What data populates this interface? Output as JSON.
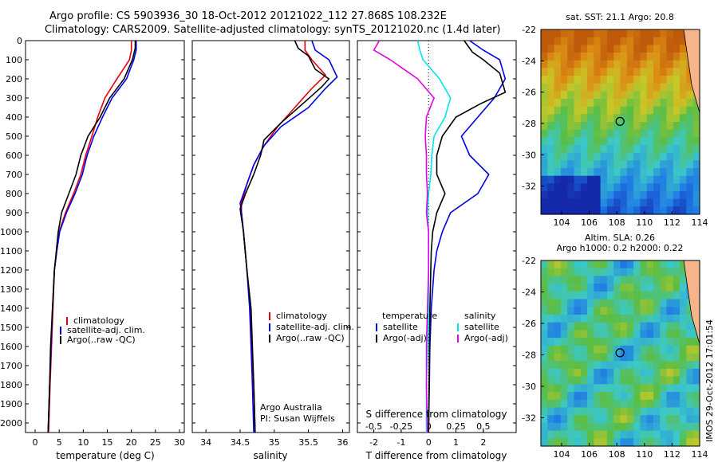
{
  "header": {
    "line1": "Argo profile: CS 5903936_30 18-Oct-2012 20121022_112 27.868S 108.232E",
    "line2": "Climatology: CARS2009. Satellite-adjusted climatology: synTS_20121020.nc (1.4d later)"
  },
  "stamp": "IMOS 29-Oct-2012 17:01:54",
  "colors": {
    "climatology": "#e8000b",
    "satellite": "#0000e6",
    "argo": "#000000",
    "salinity_sat": "#00e5e5",
    "salinity_argo": "#e600e6"
  },
  "chart_data": [
    {
      "type": "line",
      "xlabel": "temperature (deg C)",
      "xlim": [
        -2,
        31
      ],
      "ylim": [
        2050,
        0
      ],
      "xticks": [
        "0",
        "5",
        "10",
        "15",
        "20",
        "25",
        "30"
      ],
      "yticks": [
        "0",
        "100",
        "200",
        "300",
        "400",
        "500",
        "600",
        "700",
        "800",
        "900",
        "1000",
        "1100",
        "1200",
        "1300",
        "1400",
        "1500",
        "1600",
        "1700",
        "1800",
        "1900",
        "2000"
      ],
      "legend": [
        "climatology",
        "satellite-adj. clim.",
        "Argo(..raw -QC)"
      ],
      "series": [
        {
          "name": "climatology",
          "color": "#e8000b",
          "points": [
            [
              20.0,
              0
            ],
            [
              20.0,
              50
            ],
            [
              19.6,
              100
            ],
            [
              17.0,
              200
            ],
            [
              14.5,
              300
            ],
            [
              13.0,
              400
            ],
            [
              11.8,
              500
            ],
            [
              10.5,
              600
            ],
            [
              9.5,
              700
            ],
            [
              8.0,
              800
            ],
            [
              6.3,
              900
            ],
            [
              5.0,
              1000
            ],
            [
              4.5,
              1100
            ],
            [
              4.0,
              1200
            ],
            [
              3.7,
              1400
            ],
            [
              3.4,
              1600
            ],
            [
              3.1,
              1800
            ],
            [
              2.8,
              2050
            ]
          ]
        },
        {
          "name": "satellite-adj. clim.",
          "color": "#0000e6",
          "points": [
            [
              21.0,
              0
            ],
            [
              21.0,
              50
            ],
            [
              20.5,
              100
            ],
            [
              19.0,
              200
            ],
            [
              16.0,
              300
            ],
            [
              14.0,
              400
            ],
            [
              12.2,
              500
            ],
            [
              10.8,
              600
            ],
            [
              9.8,
              700
            ],
            [
              8.3,
              800
            ],
            [
              6.5,
              900
            ],
            [
              5.1,
              1000
            ],
            [
              4.5,
              1100
            ],
            [
              4.0,
              1200
            ],
            [
              3.6,
              1400
            ],
            [
              3.3,
              1600
            ],
            [
              3.0,
              1800
            ],
            [
              2.7,
              2050
            ]
          ]
        },
        {
          "name": "Argo(..raw -QC)",
          "color": "#000000",
          "points": [
            [
              20.8,
              0
            ],
            [
              20.8,
              40
            ],
            [
              20.2,
              100
            ],
            [
              18.5,
              200
            ],
            [
              15.5,
              300
            ],
            [
              13.5,
              400
            ],
            [
              11.0,
              500
            ],
            [
              9.5,
              600
            ],
            [
              8.5,
              700
            ],
            [
              7.0,
              800
            ],
            [
              5.5,
              900
            ],
            [
              4.8,
              1000
            ],
            [
              4.4,
              1100
            ],
            [
              4.0,
              1200
            ],
            [
              3.6,
              1400
            ],
            [
              3.2,
              1600
            ],
            [
              3.0,
              1800
            ],
            [
              2.7,
              2050
            ]
          ]
        }
      ]
    },
    {
      "type": "line",
      "xlabel": "salinity",
      "xlim": [
        33.8,
        36.1
      ],
      "ylim": [
        2050,
        0
      ],
      "xticks": [
        "34",
        "34.5",
        "35",
        "35.5",
        "36"
      ],
      "legend": [
        "climatology",
        "satellite-adj. clim.",
        "Argo(..raw -QC)"
      ],
      "annotation": [
        "Argo Australia",
        "PI: Susan Wijffels"
      ],
      "series": [
        {
          "name": "climatology",
          "color": "#e8000b",
          "points": [
            [
              35.45,
              0
            ],
            [
              35.45,
              50
            ],
            [
              35.55,
              100
            ],
            [
              35.75,
              180
            ],
            [
              35.55,
              250
            ],
            [
              35.3,
              350
            ],
            [
              35.05,
              450
            ],
            [
              34.85,
              550
            ],
            [
              34.7,
              650
            ],
            [
              34.6,
              750
            ],
            [
              34.52,
              850
            ],
            [
              34.52,
              900
            ],
            [
              34.55,
              1000
            ],
            [
              34.6,
              1200
            ],
            [
              34.65,
              1400
            ],
            [
              34.67,
              1600
            ],
            [
              34.7,
              1800
            ],
            [
              34.72,
              2050
            ]
          ]
        },
        {
          "name": "satellite-adj. clim.",
          "color": "#0000e6",
          "points": [
            [
              35.55,
              0
            ],
            [
              35.6,
              50
            ],
            [
              35.8,
              100
            ],
            [
              35.92,
              190
            ],
            [
              35.75,
              250
            ],
            [
              35.5,
              350
            ],
            [
              35.1,
              450
            ],
            [
              34.85,
              550
            ],
            [
              34.7,
              650
            ],
            [
              34.6,
              750
            ],
            [
              34.5,
              850
            ],
            [
              34.52,
              900
            ],
            [
              34.55,
              1000
            ],
            [
              34.6,
              1200
            ],
            [
              34.64,
              1400
            ],
            [
              34.66,
              1600
            ],
            [
              34.68,
              1800
            ],
            [
              34.7,
              2050
            ]
          ]
        },
        {
          "name": "Argo(..raw -QC)",
          "color": "#000000",
          "points": [
            [
              35.3,
              0
            ],
            [
              35.35,
              40
            ],
            [
              35.5,
              80
            ],
            [
              35.6,
              150
            ],
            [
              35.8,
              200
            ],
            [
              35.7,
              240
            ],
            [
              35.45,
              320
            ],
            [
              35.1,
              430
            ],
            [
              34.85,
              520
            ],
            [
              34.8,
              600
            ],
            [
              34.7,
              700
            ],
            [
              34.58,
              800
            ],
            [
              34.5,
              880
            ],
            [
              34.55,
              1000
            ],
            [
              34.6,
              1200
            ],
            [
              34.66,
              1400
            ],
            [
              34.68,
              1600
            ],
            [
              34.7,
              1800
            ],
            [
              34.72,
              2050
            ]
          ]
        }
      ]
    },
    {
      "type": "line",
      "xlabel": "T difference from climatology",
      "x2label": "S difference from climatology",
      "xlim": [
        -2.6,
        3.2
      ],
      "x2lim": [
        -0.65,
        0.8
      ],
      "ylim": [
        2050,
        0
      ],
      "xticks": [
        "-2",
        "-1",
        "0",
        "1",
        "2"
      ],
      "x2ticks": [
        "-0.5",
        "-0.25",
        "0",
        "0.25",
        "0.5"
      ],
      "legend_left_title": "temperature",
      "legend_left": [
        "satellite",
        "Argo(-adj)"
      ],
      "legend_right_title": "salinity",
      "legend_right": [
        "satellite",
        "Argo(-adj)"
      ],
      "series": [
        {
          "name": "satellite",
          "axis": "T",
          "color": "#0000e6",
          "points": [
            [
              1.5,
              0
            ],
            [
              2.0,
              50
            ],
            [
              2.6,
              100
            ],
            [
              2.8,
              200
            ],
            [
              2.4,
              300
            ],
            [
              1.8,
              400
            ],
            [
              1.2,
              500
            ],
            [
              1.5,
              600
            ],
            [
              2.2,
              700
            ],
            [
              1.8,
              800
            ],
            [
              0.8,
              900
            ],
            [
              0.5,
              1000
            ],
            [
              0.3,
              1100
            ],
            [
              0.2,
              1200
            ],
            [
              0.1,
              1400
            ],
            [
              0.05,
              1600
            ],
            [
              0.03,
              1800
            ],
            [
              0.0,
              2050
            ]
          ]
        },
        {
          "name": "Argo(-adj)",
          "axis": "T",
          "color": "#000000",
          "points": [
            [
              1.3,
              0
            ],
            [
              1.6,
              60
            ],
            [
              2.0,
              100
            ],
            [
              2.6,
              170
            ],
            [
              2.8,
              270
            ],
            [
              1.9,
              330
            ],
            [
              1.0,
              400
            ],
            [
              0.5,
              500
            ],
            [
              0.3,
              600
            ],
            [
              0.3,
              700
            ],
            [
              0.6,
              800
            ],
            [
              0.3,
              900
            ],
            [
              0.15,
              1000
            ],
            [
              0.1,
              1100
            ],
            [
              0.08,
              1200
            ],
            [
              0.05,
              1400
            ],
            [
              0.03,
              1600
            ],
            [
              0.02,
              1800
            ],
            [
              0.0,
              2050
            ]
          ]
        },
        {
          "name": "satellite",
          "axis": "S",
          "color": "#00e5e5",
          "points": [
            [
              -0.1,
              0
            ],
            [
              -0.08,
              50
            ],
            [
              -0.05,
              100
            ],
            [
              0.1,
              200
            ],
            [
              0.2,
              300
            ],
            [
              0.15,
              400
            ],
            [
              0.05,
              500
            ],
            [
              0.03,
              600
            ],
            [
              0.02,
              700
            ],
            [
              0.0,
              800
            ],
            [
              -0.01,
              900
            ],
            [
              0.0,
              1000
            ],
            [
              0.0,
              1200
            ],
            [
              0.0,
              1400
            ],
            [
              -0.01,
              1600
            ],
            [
              -0.02,
              1800
            ],
            [
              -0.02,
              2050
            ]
          ]
        },
        {
          "name": "Argo(-adj)",
          "axis": "S",
          "color": "#e600e6",
          "points": [
            [
              -0.45,
              0
            ],
            [
              -0.5,
              50
            ],
            [
              -0.35,
              100
            ],
            [
              -0.1,
              200
            ],
            [
              0.05,
              300
            ],
            [
              -0.02,
              400
            ],
            [
              -0.03,
              500
            ],
            [
              -0.02,
              600
            ],
            [
              -0.02,
              700
            ],
            [
              -0.01,
              800
            ],
            [
              -0.02,
              900
            ],
            [
              0.0,
              1000
            ],
            [
              0.0,
              1200
            ],
            [
              -0.01,
              1400
            ],
            [
              -0.02,
              1600
            ],
            [
              -0.02,
              1800
            ],
            [
              -0.01,
              2050
            ]
          ]
        }
      ]
    },
    {
      "type": "heatmap",
      "title": "sat. SST: 21.1  Argo: 20.8",
      "xlim": [
        102.5,
        114
      ],
      "ylim": [
        -33.8,
        -22
      ],
      "xticks": [
        "104",
        "106",
        "108",
        "110",
        "112",
        "114"
      ],
      "yticks": [
        "-22",
        "-24",
        "-26",
        "-28",
        "-30",
        "-32"
      ],
      "marker": [
        108.232,
        -27.868
      ]
    },
    {
      "type": "heatmap",
      "title_lines": [
        "Altim. SLA: 0.26",
        "Argo h1000: 0.2 h2000: 0.22"
      ],
      "xlim": [
        102.5,
        114
      ],
      "ylim": [
        -33.8,
        -22
      ],
      "xticks": [
        "104",
        "106",
        "108",
        "110",
        "112",
        "114"
      ],
      "yticks": [
        "-22",
        "-24",
        "-26",
        "-28",
        "-30",
        "-32"
      ],
      "marker": [
        108.232,
        -27.868
      ]
    }
  ]
}
